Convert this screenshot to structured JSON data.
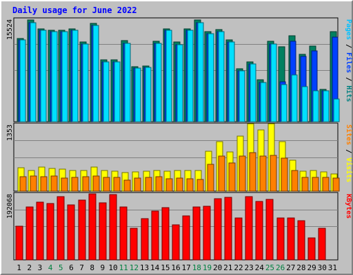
{
  "chart_data": {
    "type": "bar",
    "title": "Daily usage for June 2022",
    "categories": [
      "1",
      "2",
      "3",
      "4",
      "5",
      "6",
      "7",
      "8",
      "9",
      "10",
      "11",
      "12",
      "13",
      "14",
      "15",
      "16",
      "17",
      "18",
      "19",
      "20",
      "21",
      "22",
      "23",
      "24",
      "25",
      "26",
      "27",
      "28",
      "29",
      "30",
      "31"
    ],
    "weekend_days": [
      "4",
      "5",
      "11",
      "12",
      "18",
      "19",
      "25",
      "26"
    ],
    "panels": [
      {
        "id": "hits-files-pages",
        "max_label": "15524",
        "ylim": [
          0,
          15524
        ],
        "axis_label_parts": [
          "Pages",
          "Files",
          "Hits"
        ],
        "axis_label_colors": [
          "#00c0ff",
          "#0040ff",
          "#008080"
        ],
        "series": [
          {
            "name": "Hits",
            "color": "#008060",
            "values": [
              12560,
              15270,
              14000,
              13790,
              13790,
              14010,
              11970,
              14760,
              9270,
              9290,
              12200,
              8330,
              8420,
              12130,
              14010,
              11970,
              14010,
              15270,
              13520,
              13830,
              12360,
              7960,
              9030,
              6290,
              12150,
              11310,
              12970,
              10140,
              11430,
              4880,
              13520
            ]
          },
          {
            "name": "Files",
            "color": "#0040ff",
            "values": [
              12330,
              14950,
              13790,
              13540,
              13520,
              13790,
              11660,
              14440,
              8990,
              8990,
              11780,
              8060,
              8140,
              11780,
              13790,
              11630,
              13790,
              14950,
              13200,
              13540,
              11960,
              7670,
              8670,
              5950,
              11660,
              6000,
              12080,
              9840,
              10670,
              4630,
              12780
            ]
          },
          {
            "name": "Pages",
            "color": "#00e0ff",
            "values": [
              12330,
              14950,
              13790,
              13540,
              13520,
              13790,
              11660,
              14440,
              8990,
              8990,
              11780,
              8060,
              8140,
              11780,
              13790,
              11630,
              13790,
              14950,
              13200,
              13540,
              11960,
              7670,
              8670,
              5950,
              11660,
              5540,
              7080,
              5290,
              4630,
              4630,
              3410
            ]
          }
        ]
      },
      {
        "id": "visits-sites",
        "max_label": "1353",
        "ylim": [
          0,
          1353
        ],
        "axis_label_parts": [
          "Sites",
          "Visits"
        ],
        "axis_label_colors": [
          "#ff8000",
          "#ffff00"
        ],
        "series": [
          {
            "name": "Visits",
            "color": "#ffff00",
            "values": [
              470,
              420,
              490,
              450,
              440,
              420,
              420,
              480,
              410,
              400,
              370,
              390,
              400,
              420,
              400,
              420,
              410,
              420,
              800,
              1000,
              790,
              1100,
              1350,
              1230,
              1350,
              1000,
              620,
              400,
              420,
              390,
              350
            ]
          },
          {
            "name": "Sites",
            "color": "#ff8000",
            "values": [
              290,
              300,
              290,
              300,
              260,
              280,
              290,
              300,
              270,
              270,
              220,
              260,
              270,
              290,
              250,
              260,
              250,
              240,
              540,
              710,
              560,
              710,
              780,
              700,
              720,
              660,
              420,
              270,
              270,
              270,
              260
            ]
          }
        ]
      },
      {
        "id": "kbytes",
        "max_label": "192068",
        "ylim": [
          0,
          192068
        ],
        "axis_label_parts": [
          "KBytes"
        ],
        "axis_label_colors": [
          "#ff0000"
        ],
        "series": [
          {
            "name": "KBytes",
            "color": "#ff0000",
            "values": [
              98000,
              153000,
              166000,
              162000,
              182000,
              158000,
              173000,
              191000,
              165000,
              188000,
              153000,
              92000,
              118000,
              140000,
              151000,
              100000,
              127000,
              152000,
              155000,
              177000,
              180000,
              120000,
              182000,
              168000,
              175000,
              120000,
              120000,
              112000,
              63000,
              92000,
              0
            ]
          }
        ]
      }
    ]
  }
}
